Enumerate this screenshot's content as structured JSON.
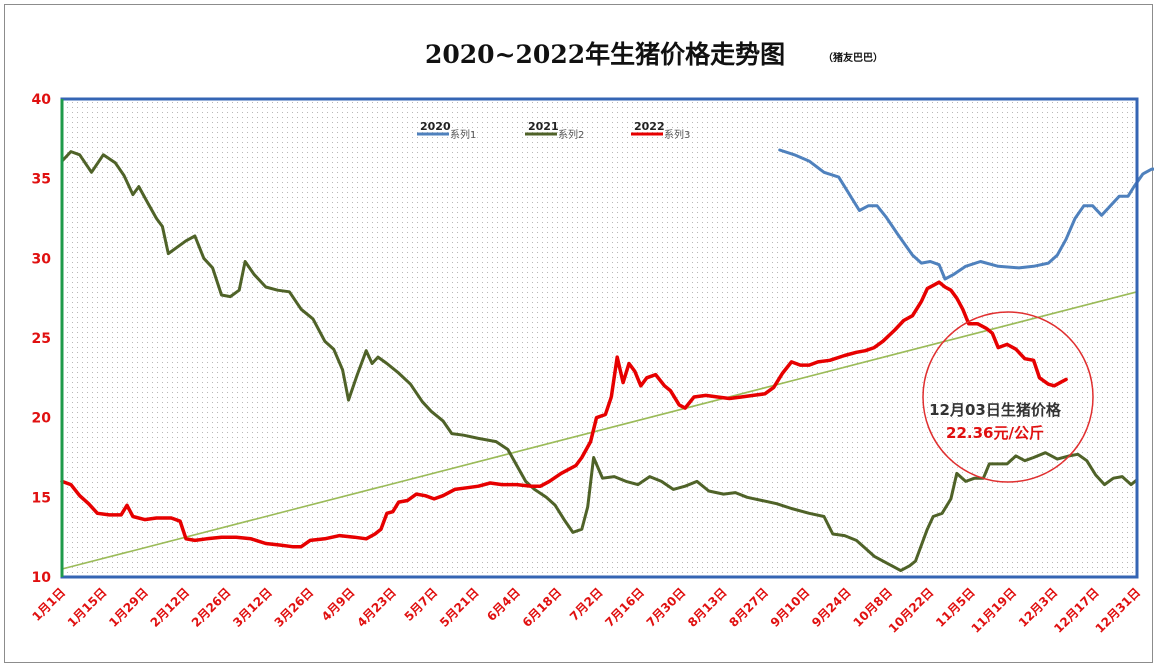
{
  "chart_data": {
    "type": "line",
    "title": "2020~2022年生猪价格走势图",
    "subtitle": "（猪友巴巴）",
    "ylim": [
      10,
      40
    ],
    "yticks": [
      "40",
      "35",
      "30",
      "25",
      "20",
      "15",
      "10"
    ],
    "xlim": [
      1,
      365
    ],
    "xticks": [
      {
        "day": 1,
        "label": "1月1日"
      },
      {
        "day": 15,
        "label": "1月15日"
      },
      {
        "day": 29,
        "label": "1月29日"
      },
      {
        "day": 43,
        "label": "2月12日"
      },
      {
        "day": 57,
        "label": "2月26日"
      },
      {
        "day": 71,
        "label": "3月12日"
      },
      {
        "day": 85,
        "label": "3月26日"
      },
      {
        "day": 99,
        "label": "4月9日"
      },
      {
        "day": 113,
        "label": "4月23日"
      },
      {
        "day": 127,
        "label": "5月7日"
      },
      {
        "day": 141,
        "label": "5月21日"
      },
      {
        "day": 155,
        "label": "6月4日"
      },
      {
        "day": 169,
        "label": "6月18日"
      },
      {
        "day": 183,
        "label": "7月2日"
      },
      {
        "day": 197,
        "label": "7月16日"
      },
      {
        "day": 211,
        "label": "7月30日"
      },
      {
        "day": 225,
        "label": "8月13日"
      },
      {
        "day": 239,
        "label": "8月27日"
      },
      {
        "day": 253,
        "label": "9月10日"
      },
      {
        "day": 267,
        "label": "9月24日"
      },
      {
        "day": 281,
        "label": "10月8日"
      },
      {
        "day": 295,
        "label": "10月22日"
      },
      {
        "day": 309,
        "label": "11月5日"
      },
      {
        "day": 323,
        "label": "11月19日"
      },
      {
        "day": 337,
        "label": "12月3日"
      },
      {
        "day": 351,
        "label": "12月17日"
      },
      {
        "day": 365,
        "label": "12月31日"
      }
    ],
    "grid": "dotted",
    "legend": "top-center",
    "series": [
      {
        "name": "系列1",
        "year": "2020",
        "color": "#4f81bd",
        "points": [
          [
            244,
            36.8
          ],
          [
            249,
            36.5
          ],
          [
            254,
            36.1
          ],
          [
            259,
            35.4
          ],
          [
            264,
            35.1
          ],
          [
            267,
            34.2
          ],
          [
            271,
            33.0
          ],
          [
            274,
            33.3
          ],
          [
            277,
            33.3
          ],
          [
            280,
            32.6
          ],
          [
            284,
            31.5
          ],
          [
            289,
            30.2
          ],
          [
            292,
            29.7
          ],
          [
            295,
            29.8
          ],
          [
            298,
            29.6
          ],
          [
            300,
            28.7
          ],
          [
            303,
            29.0
          ],
          [
            307,
            29.5
          ],
          [
            312,
            29.8
          ],
          [
            318,
            29.5
          ],
          [
            325,
            29.4
          ],
          [
            330,
            29.5
          ],
          [
            335,
            29.7
          ],
          [
            338,
            30.2
          ],
          [
            341,
            31.2
          ],
          [
            344,
            32.5
          ],
          [
            347,
            33.3
          ],
          [
            350,
            33.3
          ],
          [
            353,
            32.7
          ],
          [
            356,
            33.3
          ],
          [
            359,
            33.9
          ],
          [
            362,
            33.9
          ],
          [
            364,
            34.5
          ],
          [
            367,
            35.3
          ],
          [
            370,
            35.6
          ],
          [
            374,
            35.6
          ]
        ]
      },
      {
        "name": "系列2",
        "year": "2021",
        "color": "#4f6228",
        "points": [
          [
            1,
            36.1
          ],
          [
            4,
            36.7
          ],
          [
            7,
            36.5
          ],
          [
            11,
            35.4
          ],
          [
            15,
            36.5
          ],
          [
            19,
            36.0
          ],
          [
            22,
            35.2
          ],
          [
            25,
            34.0
          ],
          [
            27,
            34.5
          ],
          [
            30,
            33.5
          ],
          [
            33,
            32.5
          ],
          [
            35,
            32.0
          ],
          [
            37,
            30.3
          ],
          [
            40,
            30.7
          ],
          [
            43,
            31.1
          ],
          [
            46,
            31.4
          ],
          [
            49,
            30.0
          ],
          [
            52,
            29.4
          ],
          [
            55,
            27.7
          ],
          [
            58,
            27.6
          ],
          [
            61,
            28.0
          ],
          [
            63,
            29.8
          ],
          [
            66,
            29.0
          ],
          [
            70,
            28.2
          ],
          [
            74,
            28.0
          ],
          [
            78,
            27.9
          ],
          [
            82,
            26.8
          ],
          [
            86,
            26.2
          ],
          [
            90,
            24.8
          ],
          [
            93,
            24.3
          ],
          [
            96,
            23.0
          ],
          [
            98,
            21.1
          ],
          [
            101,
            22.7
          ],
          [
            104,
            24.2
          ],
          [
            106,
            23.4
          ],
          [
            108,
            23.8
          ],
          [
            111,
            23.4
          ],
          [
            115,
            22.8
          ],
          [
            119,
            22.1
          ],
          [
            123,
            21.0
          ],
          [
            126,
            20.4
          ],
          [
            130,
            19.8
          ],
          [
            133,
            19.0
          ],
          [
            137,
            18.9
          ],
          [
            142,
            18.7
          ],
          [
            148,
            18.5
          ],
          [
            152,
            18.0
          ],
          [
            155,
            17.0
          ],
          [
            158,
            16.0
          ],
          [
            161,
            15.5
          ],
          [
            165,
            15.0
          ],
          [
            168,
            14.5
          ],
          [
            171,
            13.6
          ],
          [
            174,
            12.8
          ],
          [
            177,
            13.0
          ],
          [
            179,
            14.4
          ],
          [
            181,
            17.5
          ],
          [
            184,
            16.2
          ],
          [
            188,
            16.3
          ],
          [
            192,
            16.0
          ],
          [
            196,
            15.8
          ],
          [
            200,
            16.3
          ],
          [
            204,
            16.0
          ],
          [
            208,
            15.5
          ],
          [
            212,
            15.7
          ],
          [
            216,
            16.0
          ],
          [
            220,
            15.4
          ],
          [
            225,
            15.2
          ],
          [
            229,
            15.3
          ],
          [
            233,
            15.0
          ],
          [
            238,
            14.8
          ],
          [
            243,
            14.6
          ],
          [
            248,
            14.3
          ],
          [
            254,
            14.0
          ],
          [
            259,
            13.8
          ],
          [
            262,
            12.7
          ],
          [
            266,
            12.6
          ],
          [
            270,
            12.3
          ],
          [
            273,
            11.8
          ],
          [
            276,
            11.3
          ],
          [
            279,
            11.0
          ],
          [
            282,
            10.7
          ],
          [
            285,
            10.4
          ],
          [
            288,
            10.7
          ],
          [
            290,
            11.0
          ],
          [
            292,
            12.0
          ],
          [
            294,
            13.0
          ],
          [
            296,
            13.8
          ],
          [
            299,
            14.0
          ],
          [
            302,
            14.9
          ],
          [
            304,
            16.5
          ],
          [
            307,
            16.0
          ],
          [
            310,
            16.2
          ],
          [
            313,
            16.2
          ],
          [
            315,
            17.1
          ],
          [
            318,
            17.1
          ],
          [
            321,
            17.1
          ],
          [
            324,
            17.6
          ],
          [
            327,
            17.3
          ],
          [
            330,
            17.5
          ],
          [
            334,
            17.8
          ],
          [
            338,
            17.4
          ],
          [
            342,
            17.6
          ],
          [
            345,
            17.7
          ],
          [
            348,
            17.3
          ],
          [
            351,
            16.4
          ],
          [
            354,
            15.8
          ],
          [
            357,
            16.2
          ],
          [
            360,
            16.3
          ],
          [
            363,
            15.8
          ],
          [
            365,
            16.1
          ]
        ]
      },
      {
        "name": "系列3",
        "year": "2022",
        "color": "#e60000",
        "points": [
          [
            1,
            16.0
          ],
          [
            4,
            15.8
          ],
          [
            7,
            15.1
          ],
          [
            10,
            14.6
          ],
          [
            13,
            14.0
          ],
          [
            17,
            13.9
          ],
          [
            21,
            13.9
          ],
          [
            23,
            14.5
          ],
          [
            25,
            13.8
          ],
          [
            29,
            13.6
          ],
          [
            33,
            13.7
          ],
          [
            38,
            13.7
          ],
          [
            41,
            13.5
          ],
          [
            43,
            12.4
          ],
          [
            46,
            12.3
          ],
          [
            50,
            12.4
          ],
          [
            55,
            12.5
          ],
          [
            60,
            12.5
          ],
          [
            65,
            12.4
          ],
          [
            70,
            12.1
          ],
          [
            75,
            12.0
          ],
          [
            79,
            11.9
          ],
          [
            82,
            11.9
          ],
          [
            85,
            12.3
          ],
          [
            90,
            12.4
          ],
          [
            95,
            12.6
          ],
          [
            100,
            12.5
          ],
          [
            104,
            12.4
          ],
          [
            107,
            12.7
          ],
          [
            109,
            13.0
          ],
          [
            111,
            14.0
          ],
          [
            113,
            14.1
          ],
          [
            115,
            14.7
          ],
          [
            118,
            14.8
          ],
          [
            121,
            15.2
          ],
          [
            124,
            15.1
          ],
          [
            127,
            14.9
          ],
          [
            130,
            15.1
          ],
          [
            134,
            15.5
          ],
          [
            138,
            15.6
          ],
          [
            142,
            15.7
          ],
          [
            146,
            15.9
          ],
          [
            150,
            15.8
          ],
          [
            155,
            15.8
          ],
          [
            160,
            15.7
          ],
          [
            163,
            15.7
          ],
          [
            166,
            16.0
          ],
          [
            170,
            16.5
          ],
          [
            175,
            17.0
          ],
          [
            177,
            17.5
          ],
          [
            180,
            18.5
          ],
          [
            182,
            20.0
          ],
          [
            185,
            20.2
          ],
          [
            187,
            21.3
          ],
          [
            189,
            23.8
          ],
          [
            191,
            22.2
          ],
          [
            193,
            23.4
          ],
          [
            195,
            22.9
          ],
          [
            197,
            22.0
          ],
          [
            199,
            22.5
          ],
          [
            202,
            22.7
          ],
          [
            205,
            22.0
          ],
          [
            207,
            21.7
          ],
          [
            210,
            20.8
          ],
          [
            212,
            20.6
          ],
          [
            215,
            21.3
          ],
          [
            219,
            21.4
          ],
          [
            223,
            21.3
          ],
          [
            227,
            21.2
          ],
          [
            231,
            21.3
          ],
          [
            235,
            21.4
          ],
          [
            239,
            21.5
          ],
          [
            242,
            21.9
          ],
          [
            245,
            22.8
          ],
          [
            248,
            23.5
          ],
          [
            251,
            23.3
          ],
          [
            254,
            23.3
          ],
          [
            257,
            23.5
          ],
          [
            261,
            23.6
          ],
          [
            266,
            23.9
          ],
          [
            270,
            24.1
          ],
          [
            273,
            24.2
          ],
          [
            276,
            24.4
          ],
          [
            279,
            24.8
          ],
          [
            283,
            25.5
          ],
          [
            286,
            26.1
          ],
          [
            289,
            26.4
          ],
          [
            292,
            27.3
          ],
          [
            294,
            28.1
          ],
          [
            296,
            28.3
          ],
          [
            298,
            28.5
          ],
          [
            300,
            28.2
          ],
          [
            302,
            28.0
          ],
          [
            304,
            27.5
          ],
          [
            306,
            26.8
          ],
          [
            308,
            25.9
          ],
          [
            311,
            25.9
          ],
          [
            314,
            25.6
          ],
          [
            316,
            25.3
          ],
          [
            318,
            24.4
          ],
          [
            321,
            24.6
          ],
          [
            324,
            24.3
          ],
          [
            327,
            23.7
          ],
          [
            330,
            23.6
          ],
          [
            332,
            22.5
          ],
          [
            335,
            22.1
          ],
          [
            337,
            22.0
          ],
          [
            339,
            22.2
          ],
          [
            341,
            22.4
          ]
        ]
      }
    ],
    "trendline": {
      "color": "#9bbb59",
      "from": [
        1,
        10.5
      ],
      "to": [
        365,
        27.9
      ]
    },
    "annotation": {
      "line1": "12月03日生猪价格",
      "line2": "22.36元/公斤",
      "circle_color": "#e03030"
    }
  }
}
